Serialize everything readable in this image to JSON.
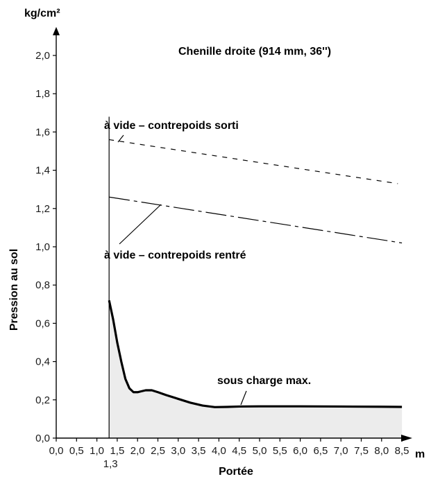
{
  "chart_data": {
    "type": "line",
    "title": "Chenille droite (914 mm, 36'')",
    "ylabel": "Pression au sol",
    "yunit": "kg/cm²",
    "xlabel": "Portée",
    "xunit": "m",
    "xlim": [
      0,
      8.5
    ],
    "ylim": [
      0,
      2.0
    ],
    "grid": false,
    "x_ticks": [
      "0,0",
      "0,5",
      "1,0",
      "1,5",
      "2,0",
      "2,5",
      "3,0",
      "3,5",
      "4,0",
      "4,5",
      "5,0",
      "5,5",
      "6,0",
      "6,5",
      "7,0",
      "7,5",
      "8,0",
      "8,5"
    ],
    "x_tick_values": [
      0,
      0.5,
      1.0,
      1.5,
      2.0,
      2.5,
      3.0,
      3.5,
      4.0,
      4.5,
      5.0,
      5.5,
      6.0,
      6.5,
      7.0,
      7.5,
      8.0,
      8.5
    ],
    "y_ticks": [
      "0,0",
      "0,2",
      "0,4",
      "0,6",
      "0,8",
      "1,0",
      "1,2",
      "1,4",
      "1,6",
      "1,8",
      "2,0"
    ],
    "y_tick_values": [
      0,
      0.2,
      0.4,
      0.6,
      0.8,
      1.0,
      1.2,
      1.4,
      1.6,
      1.8,
      2.0
    ],
    "min_reach_label": "1,3",
    "min_reach": 1.3,
    "series": [
      {
        "name": "à vide – contrepoids sorti",
        "style": "dashed",
        "x": [
          1.3,
          8.4
        ],
        "y": [
          1.56,
          1.33
        ]
      },
      {
        "name": "à vide – contrepoids rentré",
        "style": "dash-dot",
        "x": [
          1.3,
          8.5
        ],
        "y": [
          1.26,
          1.02
        ]
      },
      {
        "name": "sous charge max.",
        "style": "solid-filled",
        "fill": "#ececec",
        "x": [
          1.3,
          1.4,
          1.5,
          1.6,
          1.7,
          1.8,
          1.9,
          2.0,
          2.1,
          2.2,
          2.35,
          2.5,
          2.7,
          3.0,
          3.3,
          3.6,
          3.9,
          4.2,
          4.5,
          5.0,
          6.0,
          7.0,
          8.0,
          8.5
        ],
        "y": [
          0.72,
          0.62,
          0.5,
          0.4,
          0.31,
          0.26,
          0.24,
          0.24,
          0.245,
          0.25,
          0.25,
          0.24,
          0.225,
          0.205,
          0.185,
          0.17,
          0.162,
          0.163,
          0.165,
          0.166,
          0.166,
          0.165,
          0.164,
          0.163
        ]
      }
    ]
  }
}
